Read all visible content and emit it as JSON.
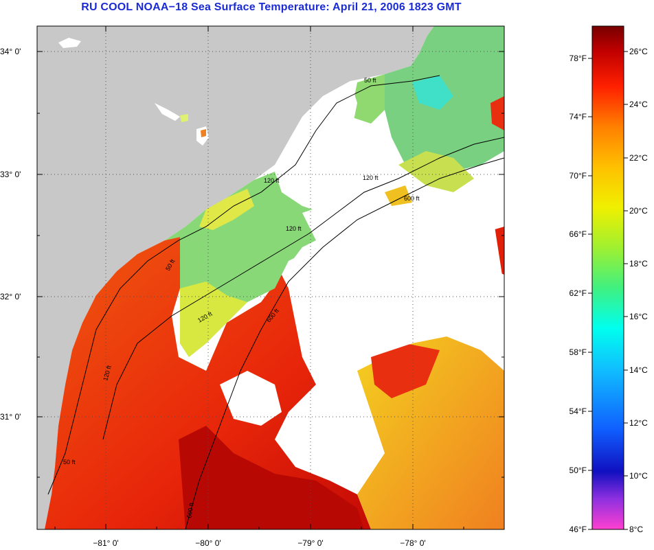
{
  "header": {
    "title": "RU COOL  NOAA−18  Sea Surface Temperature:  April 21, 2006 1823 GMT"
  },
  "axes": {
    "lat_labels": [
      {
        "text": "34° 0'",
        "lat": 34.0
      },
      {
        "text": "33° 0'",
        "lat": 33.0
      },
      {
        "text": "32° 0'",
        "lat": 32.0
      },
      {
        "text": "31° 0'",
        "lat": 31.0
      }
    ],
    "lon_labels": [
      {
        "text": "−81° 0'",
        "lon": -81.0
      },
      {
        "text": "−80° 0'",
        "lon": -80.0
      },
      {
        "text": "−79° 0'",
        "lon": -79.0
      },
      {
        "text": "−78° 0'",
        "lon": -78.0
      }
    ]
  },
  "contour_labels": [
    "50 ft",
    "120 ft",
    "600 ft"
  ],
  "colorbar": {
    "fahrenheit": [
      "78°F",
      "74°F",
      "70°F",
      "66°F",
      "62°F",
      "58°F",
      "54°F",
      "50°F",
      "46°F"
    ],
    "celsius": [
      "26°C",
      "24°C",
      "22°C",
      "20°C",
      "18°C",
      "16°C",
      "14°C",
      "12°C",
      "10°C",
      "8°C"
    ]
  },
  "colors": {
    "title": "#1a2bd6",
    "land": "#c8c8c8",
    "cloud": "#ffffff",
    "warm_water": "#e8200a",
    "hot_water": "#b00000",
    "cool_water": "#90e070"
  }
}
